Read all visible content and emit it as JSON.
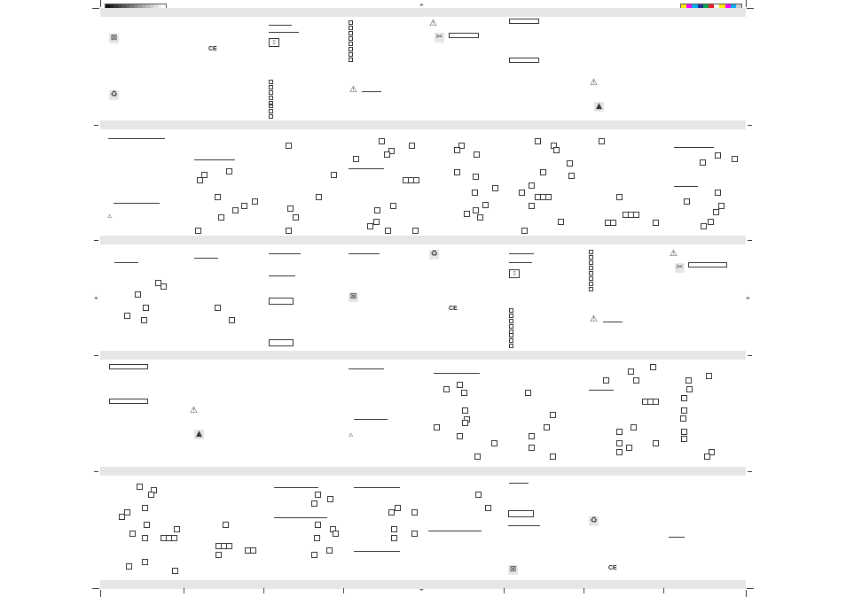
{
  "marks": {
    "ce": "CE",
    "warning": "⚠",
    "registration": "⌖",
    "note": "ℹ"
  },
  "icons": {
    "bin": "bin-icon",
    "recycle": "recycle-icon",
    "book": "manual-icon",
    "warning": "warning-icon",
    "flame": "flame-warning-icon"
  },
  "colors": {
    "band": "#e6e6e6",
    "ink": "#333333",
    "color_bar": [
      "#ffeb00",
      "#ff00ff",
      "#00aeef",
      "#2e3192",
      "#00a651",
      "#ed1c24",
      "#ffffff",
      "#ffeb00",
      "#ff00ff",
      "#00aeef",
      "#cccccc"
    ]
  }
}
